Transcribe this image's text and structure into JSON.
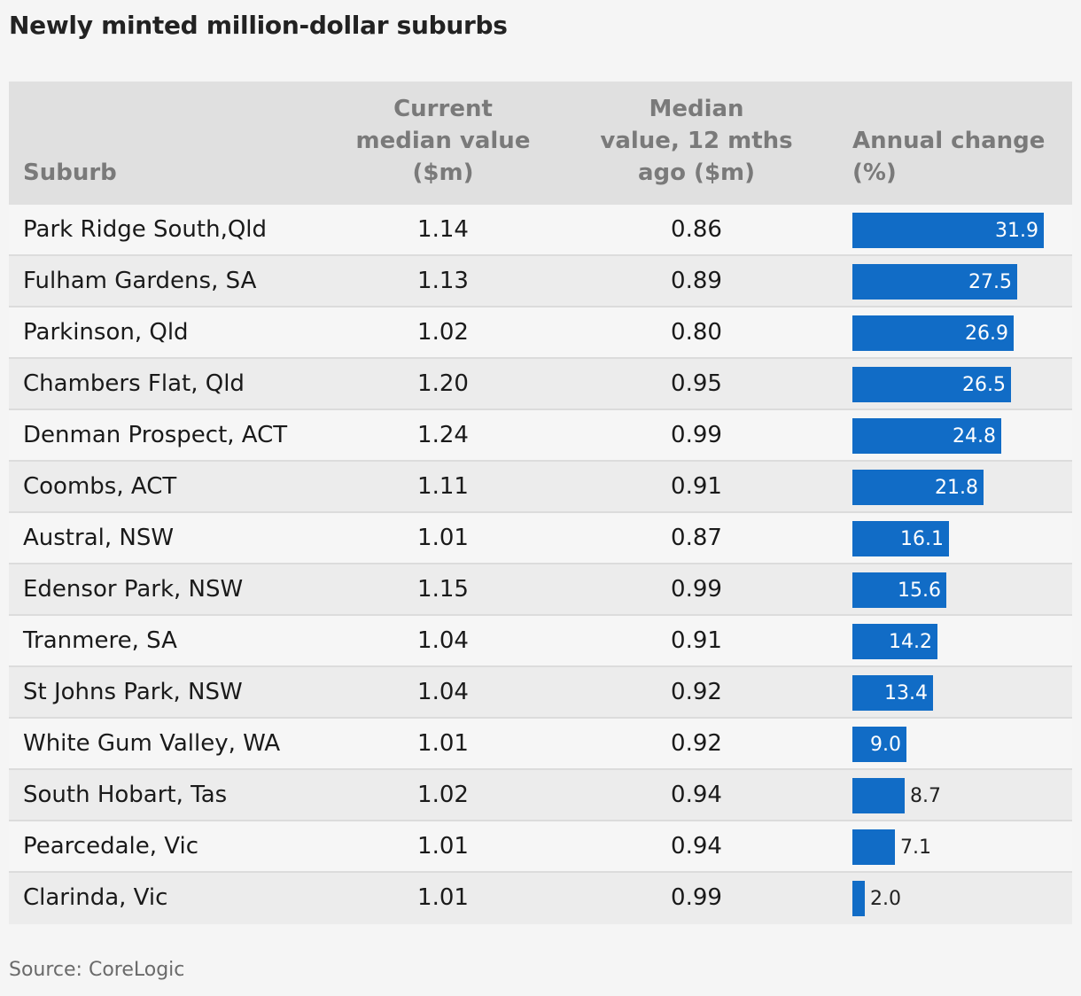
{
  "title": "Newly minted million-dollar suburbs",
  "source": "Source: CoreLogic",
  "header": {
    "suburb": "Suburb",
    "current_line1": "Current",
    "current_line2": "median value",
    "current_line3": "($m)",
    "ago_line1": "Median",
    "ago_line2": "value, 12 mths",
    "ago_line3": "ago ($m)",
    "change_line1": "Annual change",
    "change_line2": "(%)"
  },
  "colors": {
    "bar": "#116cc6",
    "header_bg": "#e0e0e0"
  },
  "chart_data": {
    "type": "table",
    "columns": [
      "Suburb",
      "Current median value ($m)",
      "Median value, 12 mths ago ($m)",
      "Annual change (%)"
    ],
    "change_axis_max": 31.9,
    "rows": [
      {
        "suburb": "Park Ridge South,Qld",
        "current": "1.14",
        "ago": "0.86",
        "change": "31.9"
      },
      {
        "suburb": "Fulham Gardens, SA",
        "current": "1.13",
        "ago": "0.89",
        "change": "27.5"
      },
      {
        "suburb": "Parkinson, Qld",
        "current": "1.02",
        "ago": "0.80",
        "change": "26.9"
      },
      {
        "suburb": "Chambers Flat, Qld",
        "current": "1.20",
        "ago": "0.95",
        "change": "26.5"
      },
      {
        "suburb": "Denman Prospect, ACT",
        "current": "1.24",
        "ago": "0.99",
        "change": "24.8"
      },
      {
        "suburb": "Coombs, ACT",
        "current": "1.11",
        "ago": "0.91",
        "change": "21.8"
      },
      {
        "suburb": "Austral, NSW",
        "current": "1.01",
        "ago": "0.87",
        "change": "16.1"
      },
      {
        "suburb": "Edensor Park, NSW",
        "current": "1.15",
        "ago": "0.99",
        "change": "15.6"
      },
      {
        "suburb": "Tranmere, SA",
        "current": "1.04",
        "ago": "0.91",
        "change": "14.2"
      },
      {
        "suburb": "St Johns Park, NSW",
        "current": "1.04",
        "ago": "0.92",
        "change": "13.4"
      },
      {
        "suburb": "White Gum Valley, WA",
        "current": "1.01",
        "ago": "0.92",
        "change": "9.0"
      },
      {
        "suburb": "South Hobart, Tas",
        "current": "1.02",
        "ago": "0.94",
        "change": "8.7"
      },
      {
        "suburb": "Pearcedale, Vic",
        "current": "1.01",
        "ago": "0.94",
        "change": "7.1"
      },
      {
        "suburb": "Clarinda, Vic",
        "current": "1.01",
        "ago": "0.99",
        "change": "2.0"
      }
    ]
  }
}
